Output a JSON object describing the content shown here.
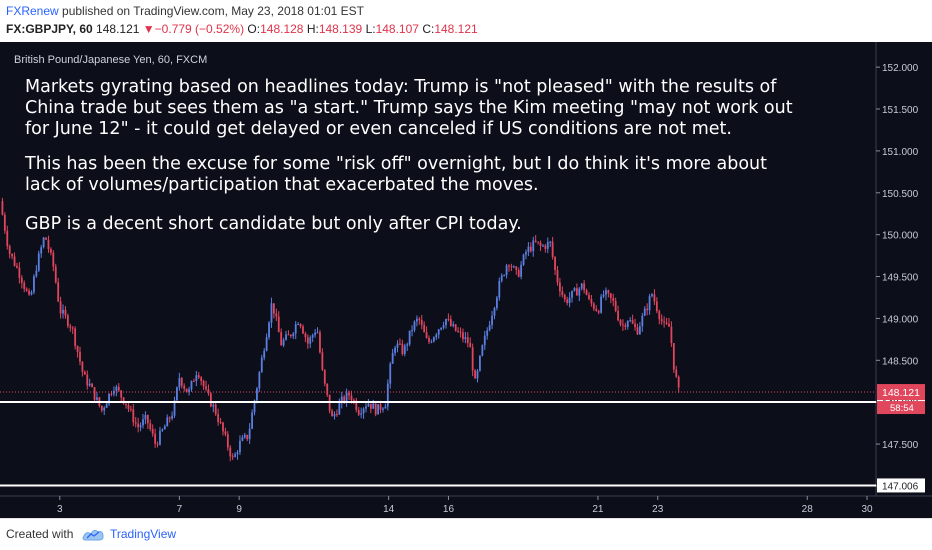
{
  "header": {
    "author": "FXRenew",
    "published_text": "published on TradingView.com, May 23, 2018 01:01 EST",
    "symbol": "FX:GBPJPY, 60",
    "last": "148.121",
    "change_arrow": "▼",
    "change": "−0.779 (−0.52%)",
    "o_label": "O:",
    "o_value": "148.128",
    "h_label": "H:",
    "h_value": "148.139",
    "l_label": "L:",
    "l_value": "148.107",
    "c_label": "C:",
    "c_value": "148.121"
  },
  "series_title": "British Pound/Japanese Yen, 60, FXCM",
  "annotation": {
    "lines": [
      "Markets gyrating based on headlines today:  Trump is \"not pleased\" with the results of",
      "China trade but sees them as \"a start.\" Trump says the Kim meeting \"may not work out",
      "for June 12\" - it could get delayed or even canceled if US conditions are not met.",
      "This has been the excuse for some \"risk off\" overnight, but I do think it's more about",
      "lack of volumes/participation that exacerbated the moves.",
      "GBP is a decent short candidate but only after CPI today."
    ]
  },
  "chart_data": {
    "type": "candlestick",
    "title": "British Pound/Japanese Yen, 60, FXCM",
    "ylim": [
      146.88,
      152.3
    ],
    "y_ticks": [
      "152.000",
      "151.500",
      "151.000",
      "150.500",
      "150.000",
      "149.500",
      "149.000",
      "148.500",
      "148.000",
      "147.500",
      "147.000"
    ],
    "x_ticks": [
      "3",
      "7",
      "9",
      "14",
      "16",
      "21",
      "23",
      "28",
      "30"
    ],
    "x_tick_positions_days": [
      3,
      7,
      9,
      14,
      16,
      21,
      23,
      28,
      30
    ],
    "x_range_days": [
      1,
      30.3
    ],
    "price_path": [
      [
        1.0,
        150.4
      ],
      [
        1.3,
        149.8
      ],
      [
        1.7,
        149.5
      ],
      [
        2.0,
        149.2
      ],
      [
        2.2,
        149.6
      ],
      [
        2.5,
        150.0
      ],
      [
        2.8,
        149.6
      ],
      [
        3.0,
        149.1
      ],
      [
        3.4,
        148.9
      ],
      [
        3.8,
        148.3
      ],
      [
        4.0,
        148.2
      ],
      [
        4.4,
        147.9
      ],
      [
        4.8,
        148.2
      ],
      [
        5.2,
        148.0
      ],
      [
        5.6,
        147.7
      ],
      [
        5.9,
        147.8
      ],
      [
        6.2,
        147.5
      ],
      [
        6.5,
        147.7
      ],
      [
        6.8,
        147.9
      ],
      [
        7.0,
        148.3
      ],
      [
        7.3,
        148.1
      ],
      [
        7.6,
        148.4
      ],
      [
        7.9,
        148.1
      ],
      [
        8.2,
        147.9
      ],
      [
        8.5,
        147.6
      ],
      [
        8.8,
        147.3
      ],
      [
        9.0,
        147.5
      ],
      [
        9.3,
        147.6
      ],
      [
        9.6,
        148.2
      ],
      [
        9.9,
        148.8
      ],
      [
        10.1,
        149.2
      ],
      [
        10.4,
        148.7
      ],
      [
        10.7,
        148.8
      ],
      [
        11.0,
        149.0
      ],
      [
        11.3,
        148.7
      ],
      [
        11.6,
        148.9
      ],
      [
        11.8,
        148.3
      ],
      [
        12.1,
        147.8
      ],
      [
        12.4,
        148.0
      ],
      [
        12.7,
        148.1
      ],
      [
        13.0,
        147.9
      ],
      [
        13.3,
        148.0
      ],
      [
        13.6,
        147.9
      ],
      [
        13.9,
        148.0
      ],
      [
        14.0,
        148.3
      ],
      [
        14.2,
        148.7
      ],
      [
        14.5,
        148.6
      ],
      [
        14.8,
        148.9
      ],
      [
        15.0,
        149.0
      ],
      [
        15.3,
        148.7
      ],
      [
        15.6,
        148.85
      ],
      [
        15.9,
        149.0
      ],
      [
        16.1,
        148.9
      ],
      [
        16.4,
        148.8
      ],
      [
        16.7,
        148.7
      ],
      [
        16.9,
        148.2
      ],
      [
        17.1,
        148.6
      ],
      [
        17.4,
        149.0
      ],
      [
        17.7,
        149.4
      ],
      [
        18.0,
        149.7
      ],
      [
        18.3,
        149.5
      ],
      [
        18.6,
        149.8
      ],
      [
        18.9,
        149.9
      ],
      [
        19.1,
        149.85
      ],
      [
        19.4,
        149.9
      ],
      [
        19.6,
        149.5
      ],
      [
        19.9,
        149.2
      ],
      [
        20.2,
        149.3
      ],
      [
        20.5,
        149.4
      ],
      [
        20.7,
        149.2
      ],
      [
        21.0,
        149.1
      ],
      [
        21.2,
        149.3
      ],
      [
        21.5,
        149.2
      ],
      [
        21.8,
        148.9
      ],
      [
        22.0,
        149.0
      ],
      [
        22.3,
        148.85
      ],
      [
        22.6,
        149.1
      ],
      [
        22.8,
        149.3
      ],
      [
        23.0,
        149.1
      ],
      [
        23.2,
        148.9
      ],
      [
        23.4,
        148.9
      ],
      [
        23.55,
        148.4
      ],
      [
        23.7,
        148.12
      ]
    ],
    "candle_count": 280,
    "last_price": 148.121,
    "last_price_label": "148.121",
    "countdown_label": "58:54",
    "horizontal_lines": [
      {
        "price": 148.002,
        "label": "148.002"
      },
      {
        "price": 147.006,
        "label": "147.006"
      }
    ],
    "colors": {
      "up": "#5b7fe0",
      "down": "#e0465c",
      "background": "#0c0e1a",
      "last_price_line": "#e0465c",
      "hline": "#ffffff",
      "axis_text": "#c8ccd6"
    }
  },
  "footer": {
    "created_with": "Created with",
    "brand": "TradingView"
  }
}
